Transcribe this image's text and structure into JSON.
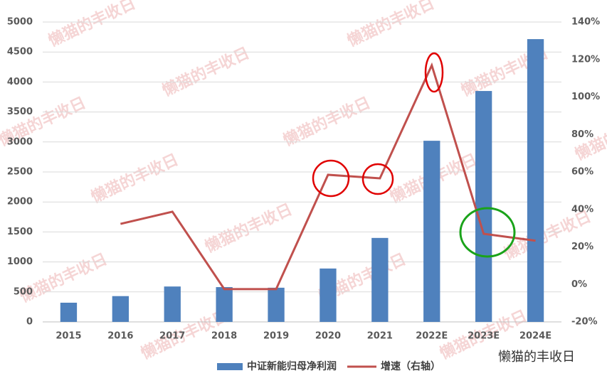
{
  "chart_data": {
    "type": "bar_line",
    "categories": [
      "2015",
      "2016",
      "2017",
      "2018",
      "2019",
      "2020",
      "2021",
      "2022E",
      "2023E",
      "2024E"
    ],
    "series": [
      {
        "name": "中证新能归母净利润",
        "type": "bar",
        "color": "#4f81bd",
        "values": [
          320,
          430,
          590,
          580,
          570,
          890,
          1400,
          3020,
          3850,
          4715
        ]
      },
      {
        "name": "增速（右轴）",
        "type": "line",
        "axis": "y2",
        "color": "#c0504d",
        "values": [
          null,
          32.3,
          38.8,
          -2.5,
          -2.5,
          58.5,
          56.6,
          116.9,
          27,
          23.3
        ]
      }
    ],
    "ylim": [
      0,
      5000
    ],
    "yticks": [
      0,
      500,
      1000,
      1500,
      2000,
      2500,
      3000,
      3500,
      4000,
      4500,
      5000
    ],
    "y2lim": [
      -20,
      140
    ],
    "y2ticks": [
      {
        "value": -20,
        "label": "-20%"
      },
      {
        "value": 0,
        "label": "0%"
      },
      {
        "value": 20,
        "label": "20%"
      },
      {
        "value": 40,
        "label": "40%"
      },
      {
        "value": 60,
        "label": "60%"
      },
      {
        "value": 80,
        "label": "80%"
      },
      {
        "value": 100,
        "label": "100%"
      },
      {
        "value": 120,
        "label": "120%"
      },
      {
        "value": 140,
        "label": "140%"
      }
    ],
    "grid": true,
    "legend": "bottom",
    "watermark": "懒猫的丰收日"
  }
}
